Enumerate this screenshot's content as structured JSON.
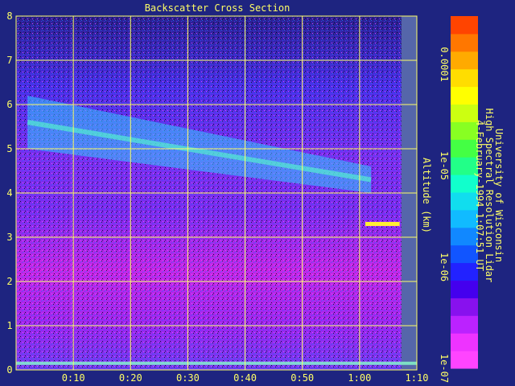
{
  "chart_data": {
    "type": "heatmap",
    "title": "Backscatter Cross Section",
    "ylabel": "Altitude (km)",
    "xlabel": "",
    "xlim": [
      0,
      70
    ],
    "ylim": [
      0,
      8
    ],
    "x_ticks": [
      {
        "value": 10,
        "label": "0:10"
      },
      {
        "value": 20,
        "label": "0:20"
      },
      {
        "value": 30,
        "label": "0:30"
      },
      {
        "value": 40,
        "label": "0:40"
      },
      {
        "value": 50,
        "label": "0:50"
      },
      {
        "value": 60,
        "label": "1:00"
      },
      {
        "value": 70,
        "label": "1:10"
      }
    ],
    "y_ticks": [
      {
        "value": 0,
        "label": "0"
      },
      {
        "value": 1,
        "label": "1"
      },
      {
        "value": 2,
        "label": "2"
      },
      {
        "value": 3,
        "label": "3"
      },
      {
        "value": 4,
        "label": "4"
      },
      {
        "value": 5,
        "label": "5"
      },
      {
        "value": 6,
        "label": "6"
      },
      {
        "value": 7,
        "label": "7"
      },
      {
        "value": 8,
        "label": "8"
      }
    ],
    "grid": true,
    "colorbar": {
      "scale": "log",
      "range": [
        1e-07,
        0.0003
      ],
      "ticks": [
        {
          "value": 0.0001,
          "label": "0.0001"
        },
        {
          "value": 1e-05,
          "label": "1e-05"
        },
        {
          "value": 1e-06,
          "label": "1e-06"
        },
        {
          "value": 1e-07,
          "label": "1e-07"
        }
      ],
      "colors_bottom_to_top": [
        "#ff44ff",
        "#ee33ff",
        "#bb22ff",
        "#8811ee",
        "#4400ee",
        "#2222ff",
        "#1155ff",
        "#1188ff",
        "#11bbff",
        "#11ddee",
        "#11ffcc",
        "#22ff88",
        "#44ff44",
        "#88ff22",
        "#ccff11",
        "#ffff00",
        "#ffdd00",
        "#ffaa00",
        "#ff7700",
        "#ff4400"
      ]
    },
    "credit_lines": [
      "University of Wisconsin",
      "High Spectral Resolution Lidar",
      "4-February-1994  1:07:51 UT"
    ],
    "features": [
      {
        "name": "cirrus layer",
        "x": [
          2,
          62
        ],
        "y_bottom": [
          5.0,
          4.0
        ],
        "y_top": [
          6.2,
          4.6
        ]
      },
      {
        "name": "bright layer",
        "x": [
          61,
          67
        ],
        "y": 3.3
      },
      {
        "name": "boundary layer",
        "y": 0.15
      }
    ],
    "colors": {
      "background": "#1e2480",
      "axis": "#ffff66"
    }
  }
}
